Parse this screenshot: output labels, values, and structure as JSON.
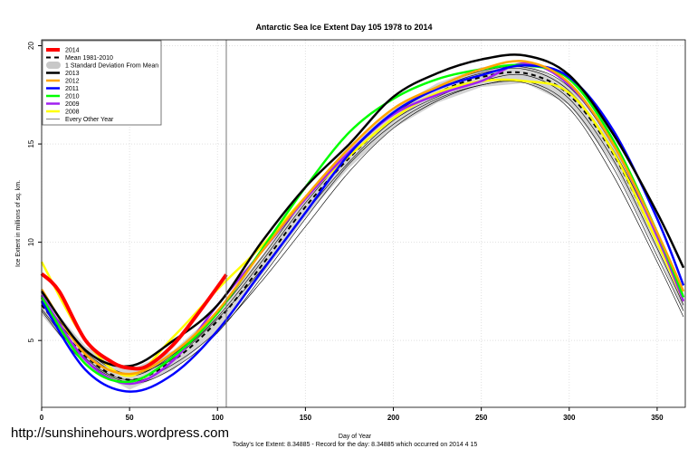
{
  "chart_data": {
    "type": "line",
    "title": "Antarctic Sea Ice Extent Day 105 1978 to 2014",
    "xlabel": "Day of Year",
    "ylabel": "Ice Extent in millions of sq. km.",
    "subtitle": "Today's Ice Extent: 8.34885  - Record for the day: 8.34885 which occurred on 2014 4 15",
    "xlim": [
      0,
      366
    ],
    "ylim": [
      1.6,
      20.3
    ],
    "xticks": [
      0,
      50,
      100,
      150,
      200,
      250,
      300,
      350
    ],
    "yticks": [
      5,
      10,
      15,
      20
    ],
    "grid": true,
    "legend_position": "top-left",
    "marker_day": 105,
    "x": [
      0,
      25,
      50,
      75,
      100,
      125,
      150,
      175,
      200,
      225,
      250,
      275,
      300,
      325,
      350,
      365
    ],
    "mean": {
      "name": "Mean 1981-2010",
      "values": [
        6.8,
        4.2,
        3.0,
        4.0,
        6.0,
        8.8,
        11.8,
        14.3,
        16.3,
        17.6,
        18.4,
        18.6,
        17.5,
        14.5,
        10.0,
        7.0
      ]
    },
    "std_band": {
      "name": "1 Standard Deviation From Mean",
      "half_width": 0.5,
      "color": "#c8c8c8"
    },
    "series": [
      {
        "name": "2013",
        "color": "#000000",
        "values": [
          7.5,
          4.5,
          3.7,
          5.0,
          6.8,
          10.0,
          12.8,
          15.0,
          17.4,
          18.6,
          19.3,
          19.5,
          18.5,
          15.5,
          11.5,
          8.7
        ]
      },
      {
        "name": "2012",
        "color": "#ffa500",
        "values": [
          7.6,
          4.3,
          3.3,
          4.4,
          6.5,
          9.5,
          12.3,
          14.8,
          16.8,
          17.9,
          18.8,
          19.2,
          18.1,
          15.0,
          10.5,
          7.5
        ]
      },
      {
        "name": "2011",
        "color": "#0000ff",
        "values": [
          7.0,
          3.5,
          2.4,
          3.3,
          5.5,
          8.5,
          11.5,
          14.5,
          16.6,
          17.8,
          18.5,
          19.0,
          18.4,
          15.7,
          11.2,
          7.8
        ]
      },
      {
        "name": "2010",
        "color": "#00ff00",
        "values": [
          7.2,
          3.8,
          2.9,
          4.2,
          6.4,
          9.6,
          12.8,
          15.6,
          17.3,
          18.3,
          18.8,
          19.0,
          18.3,
          15.2,
          10.5,
          7.2
        ]
      },
      {
        "name": "2009",
        "color": "#a020f0",
        "values": [
          7.3,
          4.0,
          2.8,
          4.0,
          6.8,
          9.5,
          12.2,
          14.6,
          16.5,
          17.5,
          18.2,
          19.1,
          18.0,
          15.0,
          10.3,
          7.0
        ]
      },
      {
        "name": "2008",
        "color": "#ffff00",
        "values": [
          9.0,
          5.0,
          3.2,
          5.2,
          7.6,
          9.8,
          12.3,
          14.4,
          16.3,
          17.6,
          18.2,
          18.2,
          17.6,
          14.6,
          10.0,
          7.0
        ]
      }
    ],
    "current": {
      "name": "2014",
      "color": "#ff0000",
      "x": [
        0,
        10,
        25,
        40,
        50,
        60,
        75,
        90,
        105
      ],
      "values": [
        8.4,
        7.5,
        5.0,
        3.9,
        3.6,
        3.7,
        4.8,
        6.5,
        8.35
      ]
    },
    "other_years": {
      "name": "Every Other Year",
      "color": "#000000",
      "series": [
        [
          6.5,
          3.8,
          2.8,
          3.6,
          5.4,
          8.2,
          11.2,
          14.0,
          16.0,
          17.3,
          18.0,
          18.2,
          17.0,
          13.8,
          9.3,
          6.5
        ],
        [
          7.0,
          4.4,
          3.2,
          4.3,
          6.4,
          9.2,
          12.2,
          14.6,
          16.6,
          17.9,
          18.7,
          18.9,
          17.9,
          14.9,
          10.4,
          7.3
        ],
        [
          6.6,
          4.0,
          2.9,
          3.8,
          5.5,
          8.0,
          10.8,
          13.6,
          15.8,
          17.2,
          18.0,
          18.1,
          16.8,
          13.4,
          9.0,
          6.2
        ],
        [
          7.1,
          4.5,
          3.3,
          4.2,
          6.2,
          9.0,
          12.0,
          14.5,
          16.5,
          17.8,
          18.6,
          18.8,
          17.7,
          14.7,
          10.3,
          7.2
        ],
        [
          6.9,
          4.1,
          3.0,
          4.1,
          6.1,
          8.6,
          11.5,
          14.1,
          16.2,
          17.4,
          18.2,
          18.5,
          17.3,
          14.2,
          9.7,
          6.8
        ]
      ]
    }
  },
  "watermark": "http://sunshinehours.wordpress.com"
}
